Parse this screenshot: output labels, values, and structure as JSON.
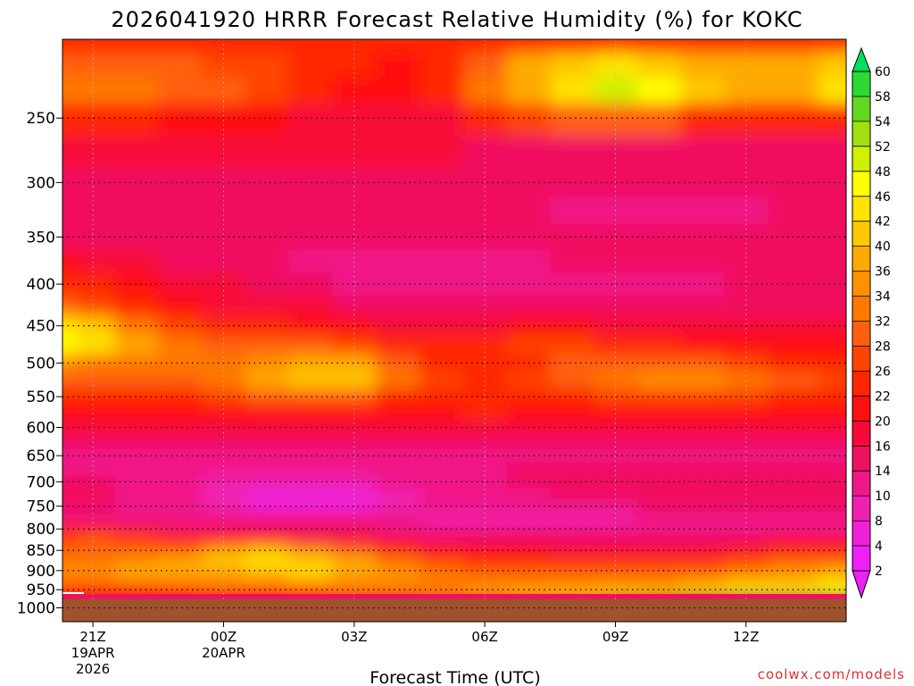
{
  "chart_data": {
    "type": "heatmap",
    "title": "2026041920 HRRR Forecast Relative Humidity (%) for KOKC",
    "xlabel": "Forecast Time (UTC)",
    "credit": "coolwx.com/models",
    "y_scale": "log",
    "y_range_hpa": [
      1040,
      200
    ],
    "x_range_hours": [
      -0.7,
      17.3
    ],
    "y_ticks": [
      250,
      300,
      350,
      400,
      450,
      500,
      550,
      600,
      650,
      700,
      750,
      800,
      850,
      900,
      950,
      1000
    ],
    "x_ticks": [
      {
        "hour": 0,
        "lines": [
          "21Z",
          "19APR",
          "2026"
        ]
      },
      {
        "hour": 3,
        "lines": [
          "00Z",
          "20APR"
        ]
      },
      {
        "hour": 6,
        "lines": [
          "03Z"
        ]
      },
      {
        "hour": 9,
        "lines": [
          "06Z"
        ]
      },
      {
        "hour": 12,
        "lines": [
          "09Z"
        ]
      },
      {
        "hour": 15,
        "lines": [
          "12Z"
        ]
      }
    ],
    "colorbar": {
      "labels": [
        60,
        58,
        54,
        52,
        48,
        46,
        42,
        40,
        36,
        34,
        32,
        28,
        26,
        22,
        20,
        16,
        14,
        10,
        8,
        4,
        2
      ],
      "colors": [
        "#00e060",
        "#30d830",
        "#60d820",
        "#a0e010",
        "#d0f000",
        "#ffff00",
        "#ffe400",
        "#ffc800",
        "#ffaa00",
        "#ff9000",
        "#ff7800",
        "#ff6010",
        "#ff4400",
        "#ff2600",
        "#ff1010",
        "#f80838",
        "#f01060",
        "#f01888",
        "#f020b0",
        "#f020d8",
        "#ee20f4"
      ]
    },
    "ground": {
      "below_hpa": 975,
      "color": "#a0522d"
    },
    "times_hours": [
      -0.7,
      0,
      1,
      2,
      3,
      4,
      5,
      6,
      7,
      8,
      9,
      10,
      11,
      12,
      13,
      14,
      15,
      16,
      17.3
    ],
    "levels_hpa": [
      200,
      215,
      230,
      250,
      275,
      300,
      325,
      350,
      375,
      400,
      425,
      450,
      475,
      500,
      525,
      550,
      575,
      600,
      625,
      650,
      675,
      700,
      725,
      750,
      775,
      800,
      825,
      850,
      875,
      900,
      925,
      950,
      975
    ],
    "rh": [
      [
        22,
        22,
        22,
        22,
        22,
        22,
        22,
        22,
        22,
        22,
        22,
        22,
        22,
        22,
        22,
        22,
        22,
        22,
        22
      ],
      [
        28,
        28,
        28,
        28,
        26,
        26,
        24,
        22,
        20,
        22,
        30,
        36,
        40,
        42,
        40,
        38,
        36,
        38,
        40
      ],
      [
        32,
        32,
        32,
        30,
        28,
        26,
        22,
        20,
        20,
        22,
        32,
        38,
        44,
        50,
        46,
        40,
        36,
        38,
        44
      ],
      [
        22,
        22,
        22,
        20,
        20,
        20,
        18,
        16,
        16,
        18,
        22,
        26,
        28,
        28,
        28,
        24,
        22,
        22,
        24
      ],
      [
        16,
        16,
        16,
        16,
        16,
        16,
        16,
        16,
        16,
        16,
        14,
        14,
        14,
        14,
        14,
        14,
        14,
        14,
        14
      ],
      [
        14,
        14,
        14,
        14,
        14,
        14,
        14,
        14,
        14,
        14,
        14,
        14,
        14,
        14,
        14,
        14,
        14,
        14,
        14
      ],
      [
        14,
        14,
        14,
        14,
        14,
        14,
        14,
        14,
        14,
        14,
        14,
        14,
        12,
        10,
        10,
        10,
        12,
        14,
        14
      ],
      [
        14,
        14,
        14,
        14,
        14,
        14,
        14,
        14,
        14,
        14,
        14,
        14,
        14,
        14,
        14,
        14,
        14,
        14,
        14
      ],
      [
        20,
        18,
        16,
        14,
        14,
        14,
        12,
        12,
        10,
        10,
        12,
        12,
        14,
        14,
        14,
        14,
        14,
        14,
        14
      ],
      [
        22,
        22,
        20,
        16,
        16,
        14,
        14,
        12,
        10,
        10,
        12,
        12,
        10,
        10,
        10,
        12,
        14,
        14,
        14
      ],
      [
        28,
        26,
        22,
        20,
        18,
        16,
        16,
        14,
        14,
        14,
        14,
        14,
        14,
        14,
        14,
        14,
        14,
        14,
        14
      ],
      [
        44,
        40,
        32,
        26,
        24,
        22,
        20,
        20,
        18,
        16,
        18,
        20,
        20,
        18,
        18,
        16,
        16,
        16,
        16
      ],
      [
        46,
        42,
        36,
        32,
        30,
        28,
        28,
        26,
        24,
        22,
        24,
        26,
        26,
        24,
        22,
        20,
        20,
        20,
        20
      ],
      [
        34,
        32,
        32,
        32,
        32,
        34,
        36,
        36,
        30,
        24,
        22,
        24,
        28,
        28,
        28,
        28,
        26,
        24,
        22
      ],
      [
        28,
        28,
        30,
        30,
        32,
        36,
        40,
        40,
        32,
        26,
        24,
        26,
        30,
        32,
        34,
        34,
        32,
        30,
        26
      ],
      [
        22,
        22,
        24,
        24,
        26,
        28,
        28,
        28,
        24,
        22,
        22,
        24,
        24,
        26,
        26,
        26,
        26,
        24,
        22
      ],
      [
        20,
        20,
        20,
        20,
        20,
        20,
        20,
        20,
        20,
        20,
        22,
        20,
        20,
        20,
        20,
        20,
        20,
        20,
        20
      ],
      [
        18,
        18,
        18,
        18,
        18,
        18,
        18,
        18,
        18,
        18,
        18,
        18,
        18,
        18,
        18,
        18,
        18,
        18,
        16
      ],
      [
        14,
        14,
        14,
        14,
        14,
        14,
        14,
        14,
        14,
        14,
        14,
        14,
        14,
        14,
        14,
        14,
        14,
        14,
        14
      ],
      [
        10,
        10,
        10,
        10,
        10,
        10,
        10,
        10,
        10,
        10,
        12,
        12,
        12,
        12,
        12,
        12,
        12,
        12,
        12
      ],
      [
        12,
        12,
        12,
        12,
        10,
        10,
        10,
        10,
        12,
        12,
        12,
        14,
        14,
        14,
        14,
        14,
        14,
        14,
        14
      ],
      [
        14,
        14,
        12,
        10,
        8,
        8,
        8,
        8,
        10,
        12,
        12,
        14,
        14,
        14,
        14,
        14,
        14,
        14,
        14
      ],
      [
        14,
        14,
        12,
        10,
        8,
        6,
        6,
        6,
        8,
        10,
        12,
        12,
        14,
        14,
        14,
        14,
        14,
        14,
        14
      ],
      [
        14,
        14,
        12,
        10,
        8,
        6,
        4,
        6,
        8,
        10,
        10,
        10,
        12,
        12,
        14,
        14,
        14,
        14,
        14
      ],
      [
        12,
        12,
        12,
        12,
        12,
        12,
        12,
        12,
        10,
        8,
        8,
        8,
        8,
        8,
        10,
        10,
        12,
        12,
        12
      ],
      [
        20,
        20,
        16,
        14,
        14,
        14,
        14,
        14,
        12,
        10,
        10,
        10,
        10,
        10,
        10,
        12,
        12,
        12,
        12
      ],
      [
        26,
        28,
        26,
        24,
        20,
        20,
        18,
        16,
        16,
        14,
        14,
        14,
        14,
        14,
        14,
        14,
        14,
        16,
        16
      ],
      [
        30,
        30,
        30,
        30,
        36,
        40,
        34,
        30,
        24,
        20,
        20,
        20,
        18,
        16,
        16,
        18,
        20,
        22,
        24
      ],
      [
        32,
        32,
        34,
        36,
        40,
        44,
        40,
        38,
        32,
        26,
        24,
        22,
        22,
        22,
        22,
        24,
        26,
        28,
        30
      ],
      [
        34,
        34,
        36,
        38,
        38,
        40,
        42,
        38,
        34,
        32,
        30,
        28,
        28,
        28,
        28,
        30,
        32,
        34,
        36
      ],
      [
        32,
        32,
        34,
        34,
        34,
        34,
        36,
        34,
        34,
        32,
        32,
        32,
        32,
        32,
        32,
        34,
        36,
        38,
        40
      ],
      [
        26,
        24,
        24,
        26,
        28,
        30,
        30,
        32,
        32,
        32,
        34,
        34,
        34,
        36,
        38,
        40,
        42,
        44,
        46
      ],
      [
        22,
        22,
        22,
        22,
        22,
        24,
        26,
        28,
        30,
        34,
        38,
        42,
        46,
        50,
        52,
        54,
        56,
        58,
        58
      ]
    ]
  }
}
